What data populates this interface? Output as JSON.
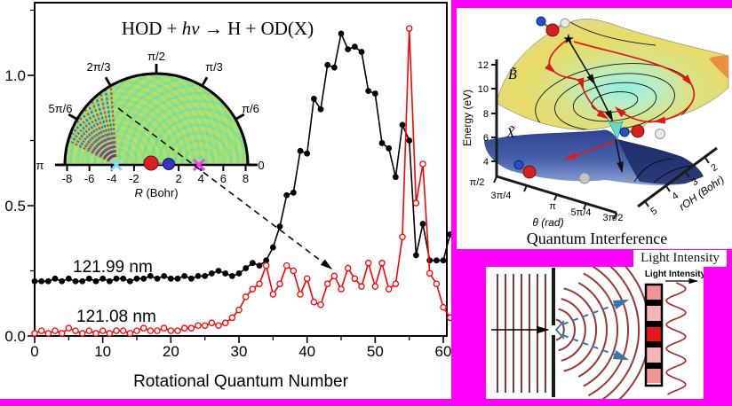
{
  "colors": {
    "background": "#FF00FF",
    "panel": "#FFFFFF",
    "title_blue": "#1C3C8F",
    "series_black": "#000000",
    "series_red": "#FF0000",
    "inset_base": "#7CE287",
    "cyan_marker": "#85DCF2",
    "magenta_marker": "#F93BF9",
    "surface_yellow": "#E7DC66",
    "surface_cyan": "#8FF0E2",
    "surface_orange": "#E8913E",
    "lower_surface_blue": "#2E4390",
    "trajectory_red": "#E01818",
    "wave_red": "#9E3535",
    "arrow_blue": "#3878A8",
    "fringe_colors": [
      "#F09494",
      "#000000",
      "#F6B6B6",
      "#000000",
      "#E81818",
      "#000000",
      "#F6B6B6",
      "#000000",
      "#F09494"
    ]
  },
  "main_plot": {
    "title_parts": [
      "HOD + ",
      "hν",
      " → H + OD(X)"
    ],
    "xlabel": "Rotational Quantum Number",
    "x_tick_labels": [
      "0",
      "10",
      "20",
      "30",
      "40",
      "50",
      "60"
    ],
    "y_tick_labels": [
      "0.0",
      "0.5",
      "1.0"
    ],
    "legend": [
      {
        "label": "121.99 nm"
      },
      {
        "label": "121.08 nm"
      }
    ]
  },
  "inset": {
    "angle_labels": {
      "a0": "0",
      "a30": "π/6",
      "a60": "π/3",
      "a90": "π/2",
      "a120": "2π/3",
      "a150": "5π/6",
      "a180": "π"
    },
    "r_tick_labels": [
      "-8",
      "-6",
      "-4",
      "-2",
      "2",
      "4",
      "6",
      "8"
    ],
    "r_axis_label_italic": "R",
    "r_axis_label_rest": " (Bohr)"
  },
  "chart_data": {
    "type": "line",
    "title": "HOD + hν → H + OD(X)",
    "xlabel": "Rotational Quantum Number",
    "x_start": 0,
    "x_step": 1,
    "x_range": [
      0,
      61
    ],
    "y_range": [
      0,
      1.28
    ],
    "x_ticks": [
      0,
      10,
      20,
      30,
      40,
      50,
      60
    ],
    "y_ticks": [
      0.0,
      0.5,
      1.0
    ],
    "legend_position": "inside-left",
    "series": [
      {
        "name": "121.99 nm",
        "color": "#000000",
        "marker": "filled-circle",
        "values": [
          0.21,
          0.21,
          0.21,
          0.22,
          0.21,
          0.22,
          0.21,
          0.21,
          0.22,
          0.21,
          0.22,
          0.21,
          0.22,
          0.22,
          0.21,
          0.22,
          0.22,
          0.23,
          0.22,
          0.23,
          0.22,
          0.22,
          0.23,
          0.22,
          0.23,
          0.23,
          0.24,
          0.25,
          0.24,
          0.23,
          0.24,
          0.26,
          0.28,
          0.27,
          0.29,
          0.34,
          0.42,
          0.54,
          0.55,
          0.71,
          0.7,
          0.91,
          0.87,
          1.04,
          1.03,
          1.16,
          1.1,
          1.11,
          1.09,
          0.94,
          0.93,
          0.74,
          0.72,
          0.61,
          0.81,
          0.75,
          0.31,
          0.43,
          0.29,
          0.29,
          0.29,
          0.39
        ]
      },
      {
        "name": "121.08 nm",
        "color": "#FF0000",
        "marker": "open-circle",
        "values": [
          0.01,
          0.02,
          0.01,
          0.02,
          0.01,
          0.03,
          0.02,
          0.01,
          0.02,
          0.01,
          0.02,
          0.01,
          0.02,
          0.02,
          0.01,
          0.02,
          0.03,
          0.02,
          0.02,
          0.03,
          0.02,
          0.02,
          0.03,
          0.03,
          0.04,
          0.04,
          0.05,
          0.04,
          0.05,
          0.07,
          0.1,
          0.15,
          0.18,
          0.2,
          0.27,
          0.16,
          0.2,
          0.27,
          0.25,
          0.16,
          0.22,
          0.13,
          0.12,
          0.2,
          0.23,
          0.18,
          0.26,
          0.22,
          0.19,
          0.28,
          0.19,
          0.28,
          0.18,
          0.2,
          0.38,
          1.18,
          0.51,
          0.66,
          0.24,
          0.2,
          0.11,
          0.07
        ]
      }
    ],
    "inset_markers": {
      "cyan_cross_R": -3.6,
      "O_atom_R": -0.5,
      "D_atom_R": 1.1,
      "magenta_cross_R": 3.8
    }
  },
  "surface_plot": {
    "energy_label": "Energy (eV)",
    "energy_ticks": [
      "12",
      "10",
      "8",
      "6",
      "4"
    ],
    "theta_label": "θ (rad)",
    "theta_ticks": [
      "π/2",
      "3π/4",
      "π",
      "5π/4",
      "3π/2"
    ],
    "roh_label": "rOH (Bohr)",
    "roh_ticks": [
      "5",
      "4",
      "3",
      "2"
    ],
    "upper_state_label": "B̃",
    "lower_state_label": "X̃",
    "caption": "Quantum Interference"
  },
  "wave_panel": {
    "outer_label": "Light Intensity",
    "inner_label": "Light Intensity"
  }
}
